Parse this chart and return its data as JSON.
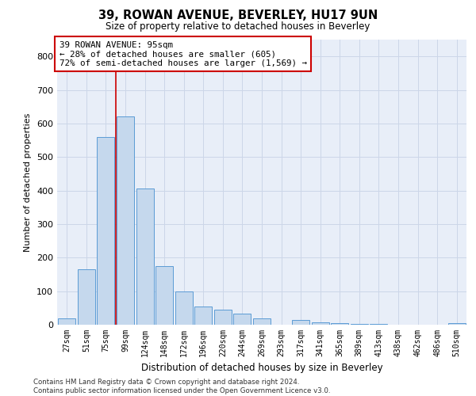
{
  "title": "39, ROWAN AVENUE, BEVERLEY, HU17 9UN",
  "subtitle": "Size of property relative to detached houses in Beverley",
  "xlabel": "Distribution of detached houses by size in Beverley",
  "ylabel": "Number of detached properties",
  "footnote": "Contains HM Land Registry data © Crown copyright and database right 2024.\nContains public sector information licensed under the Open Government Licence v3.0.",
  "bar_color": "#c5d8ed",
  "bar_edge_color": "#5b9bd5",
  "annotation_box_color": "#cc0000",
  "vline_color": "#cc0000",
  "grid_color": "#ccd6e8",
  "bg_color": "#e8eef8",
  "categories": [
    "27sqm",
    "51sqm",
    "75sqm",
    "99sqm",
    "124sqm",
    "148sqm",
    "172sqm",
    "196sqm",
    "220sqm",
    "244sqm",
    "269sqm",
    "293sqm",
    "317sqm",
    "341sqm",
    "365sqm",
    "389sqm",
    "413sqm",
    "438sqm",
    "462sqm",
    "486sqm",
    "510sqm"
  ],
  "values": [
    20,
    165,
    560,
    620,
    405,
    175,
    100,
    55,
    45,
    32,
    20,
    0,
    14,
    8,
    5,
    3,
    2,
    0,
    0,
    0,
    5
  ],
  "ylim": [
    0,
    850
  ],
  "yticks": [
    0,
    100,
    200,
    300,
    400,
    500,
    600,
    700,
    800
  ],
  "vline_x_index": 2.5,
  "annotation_text": "39 ROWAN AVENUE: 95sqm\n← 28% of detached houses are smaller (605)\n72% of semi-detached houses are larger (1,569) →"
}
